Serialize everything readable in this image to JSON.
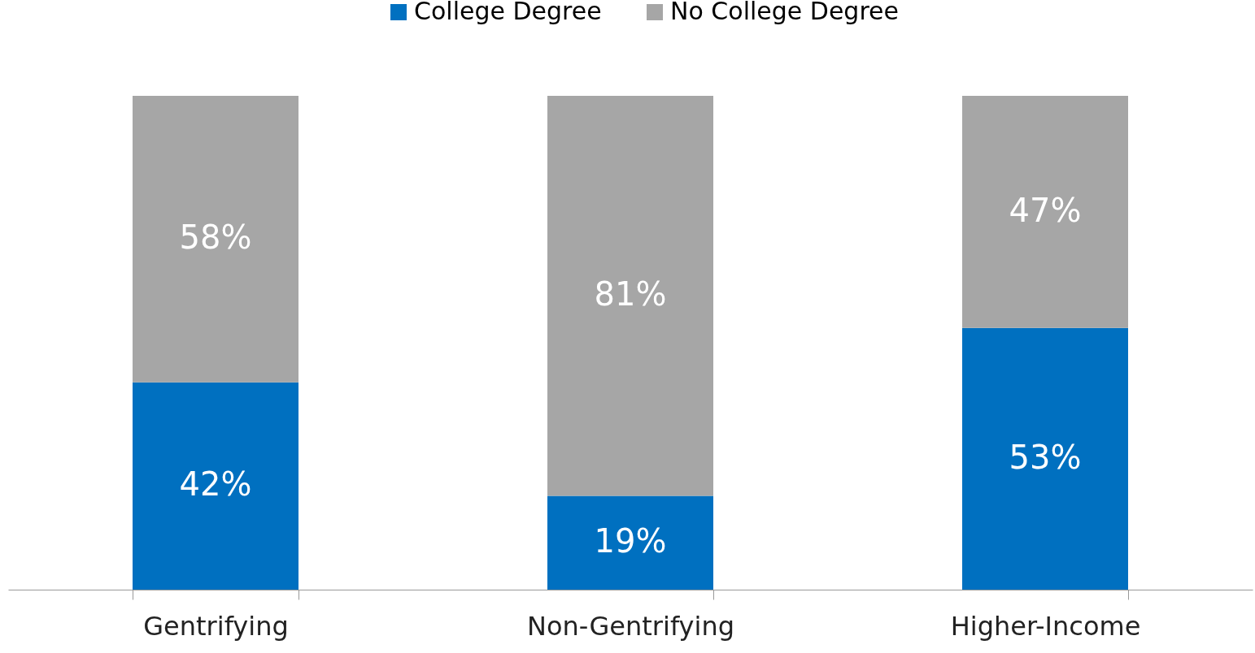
{
  "chart_data": {
    "type": "bar",
    "stacked": true,
    "categories": [
      "Gentrifying",
      "Non-Gentrifying",
      "Higher-Income"
    ],
    "series": [
      {
        "name": "College Degree",
        "color": "#0070c0",
        "values": [
          42,
          19,
          53
        ],
        "value_labels": [
          "42%",
          "19%",
          "53%"
        ]
      },
      {
        "name": "No College Degree",
        "color": "#a6a6a6",
        "values": [
          58,
          81,
          47
        ],
        "value_labels": [
          "58%",
          "81%",
          "47%"
        ]
      }
    ],
    "legend": "top",
    "grid": false
  }
}
